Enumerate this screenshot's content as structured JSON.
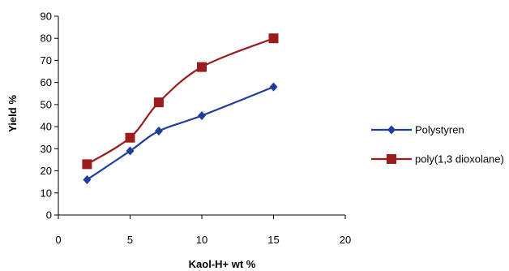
{
  "chart_data": {
    "type": "line",
    "title": "",
    "xlabel": "Kaol-H+ wt %",
    "ylabel": "Yield %",
    "xlim": [
      0,
      20
    ],
    "ylim": [
      0,
      90
    ],
    "xticks": [
      0,
      5,
      10,
      15,
      20
    ],
    "yticks": [
      0,
      10,
      20,
      30,
      40,
      50,
      60,
      70,
      80,
      90
    ],
    "grid": false,
    "legend_position": "right",
    "series": [
      {
        "name": "Polystyren",
        "color": "#1f3d99",
        "marker": "diamond",
        "x": [
          2,
          5,
          7,
          10,
          15
        ],
        "y": [
          16,
          29,
          38,
          45,
          58
        ]
      },
      {
        "name": "poly(1,3 dioxolane)",
        "color": "#9b1c1c",
        "marker": "square",
        "x": [
          2,
          5,
          7,
          10,
          15
        ],
        "y": [
          23,
          35,
          51,
          67,
          80
        ]
      }
    ]
  }
}
